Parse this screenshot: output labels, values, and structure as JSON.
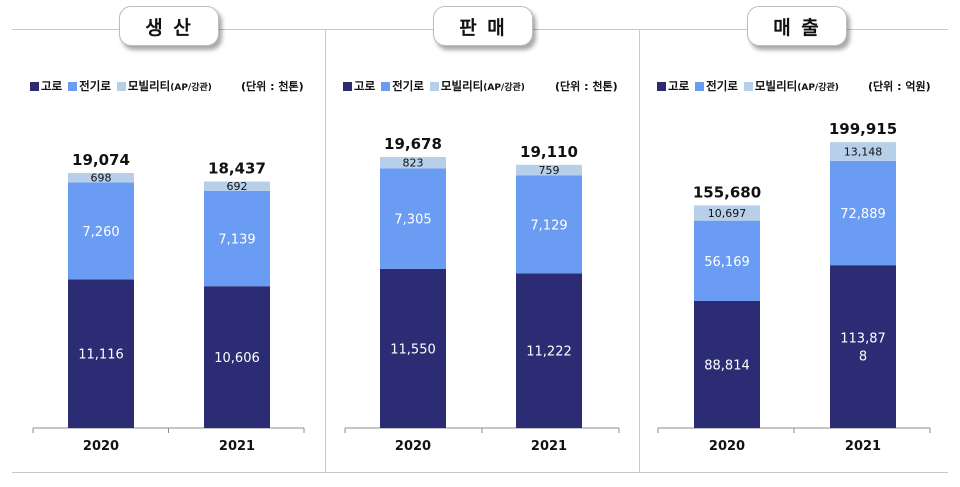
{
  "legend": {
    "blast_furnace": "고로",
    "electric_furnace": "전기로",
    "mobility": "모빌리티",
    "mobility_sub": "(AP/강관)"
  },
  "colors": {
    "blast_furnace": "#2b2c74",
    "electric_furnace": "#6a9cf3",
    "mobility": "#b8cfea"
  },
  "chart_data": [
    {
      "type": "bar",
      "stacked": true,
      "title": "생 산",
      "unit": "(단위 : 천톤)",
      "categories": [
        "2020",
        "2021"
      ],
      "series": [
        {
          "name": "고로",
          "values": [
            11116,
            10606
          ],
          "labels": [
            "11,116",
            "10,606"
          ]
        },
        {
          "name": "전기로",
          "values": [
            7260,
            7139
          ],
          "labels": [
            "7,260",
            "7,139"
          ]
        },
        {
          "name": "모빌리티(AP/강관)",
          "values": [
            698,
            692
          ],
          "labels": [
            "698",
            "692"
          ]
        }
      ],
      "totals": [
        19074,
        18437
      ],
      "total_labels": [
        "19,074",
        "18,437"
      ]
    },
    {
      "type": "bar",
      "stacked": true,
      "title": "판 매",
      "unit": "(단위 : 천톤)",
      "categories": [
        "2020",
        "2021"
      ],
      "series": [
        {
          "name": "고로",
          "values": [
            11550,
            11222
          ],
          "labels": [
            "11,550",
            "11,222"
          ]
        },
        {
          "name": "전기로",
          "values": [
            7305,
            7129
          ],
          "labels": [
            "7,305",
            "7,129"
          ]
        },
        {
          "name": "모빌리티(AP/강관)",
          "values": [
            823,
            759
          ],
          "labels": [
            "823",
            "759"
          ]
        }
      ],
      "totals": [
        19678,
        19110
      ],
      "total_labels": [
        "19,678",
        "19,110"
      ]
    },
    {
      "type": "bar",
      "stacked": true,
      "title": "매 출",
      "unit": "(단위 : 억원)",
      "categories": [
        "2020",
        "2021"
      ],
      "series": [
        {
          "name": "고로",
          "values": [
            88814,
            113878
          ],
          "labels": [
            "88,814",
            "113,878"
          ]
        },
        {
          "name": "전기로",
          "values": [
            56169,
            72889
          ],
          "labels": [
            "56,169",
            "72,889"
          ]
        },
        {
          "name": "모빌리티(AP/강관)",
          "values": [
            10697,
            13148
          ],
          "labels": [
            "10,697",
            "13,148"
          ]
        }
      ],
      "totals": [
        155680,
        199915
      ],
      "total_labels": [
        "155,680",
        "199,915"
      ]
    }
  ]
}
